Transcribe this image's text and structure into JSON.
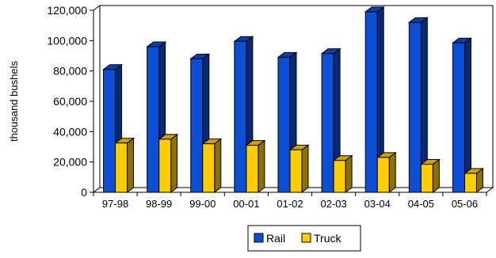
{
  "chart_data": {
    "type": "bar",
    "title": "",
    "xlabel": "",
    "ylabel": "thousand bushels",
    "ylim": [
      0,
      120000
    ],
    "yticks": [
      0,
      20000,
      40000,
      60000,
      80000,
      100000,
      120000
    ],
    "ytick_labels": [
      "0",
      "20,000",
      "40,000",
      "60,000",
      "80,000",
      "100,000",
      "120,000"
    ],
    "categories": [
      "97-98",
      "98-99",
      "99-00",
      "00-01",
      "01-02",
      "02-03",
      "03-04",
      "04-05",
      "05-06"
    ],
    "series": [
      {
        "name": "Rail",
        "color": "#0a4fd6",
        "values": [
          81000,
          96000,
          88000,
          99500,
          89000,
          91500,
          119000,
          112000,
          98500
        ]
      },
      {
        "name": "Truck",
        "color": "#ffcc00",
        "values": [
          32500,
          35000,
          32000,
          31000,
          28000,
          21000,
          23000,
          18500,
          12500
        ]
      }
    ],
    "grid": false,
    "legend": "bottom-center",
    "style": "3d-clustered-bar"
  }
}
